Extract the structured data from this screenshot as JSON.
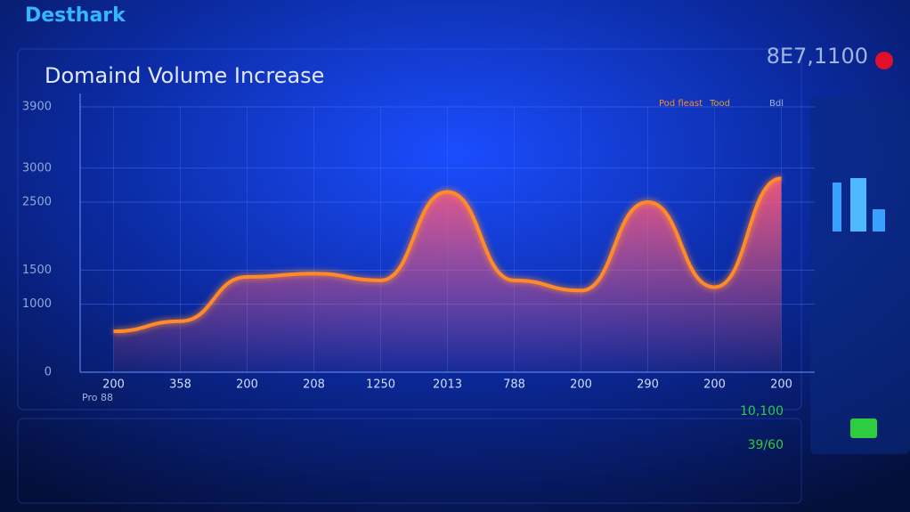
{
  "header": {
    "brand": "Desthark",
    "counter": "8E7,1100"
  },
  "chart_data": {
    "type": "area",
    "title": "Domaind Volume Increase",
    "categories": [
      "200",
      "358",
      "200",
      "208",
      "1250",
      "2013",
      "788",
      "200",
      "290",
      "200",
      "200"
    ],
    "series": [
      {
        "name": "Pod fleast",
        "color": "#ff8a2a",
        "values": [
          600,
          750,
          1400,
          1450,
          1350,
          2650,
          1350,
          1200,
          2500,
          1250,
          2850
        ]
      }
    ],
    "ylim": [
      0,
      3900
    ],
    "yticks": [
      0,
      1000,
      1500,
      2500,
      3000,
      3900
    ],
    "grid": true,
    "x_note": "Pro 88"
  },
  "side_panel": {
    "legend_extra": [
      "Tood",
      "Bdl"
    ]
  },
  "footer": {
    "values": [
      "10,100",
      "39/60"
    ]
  }
}
